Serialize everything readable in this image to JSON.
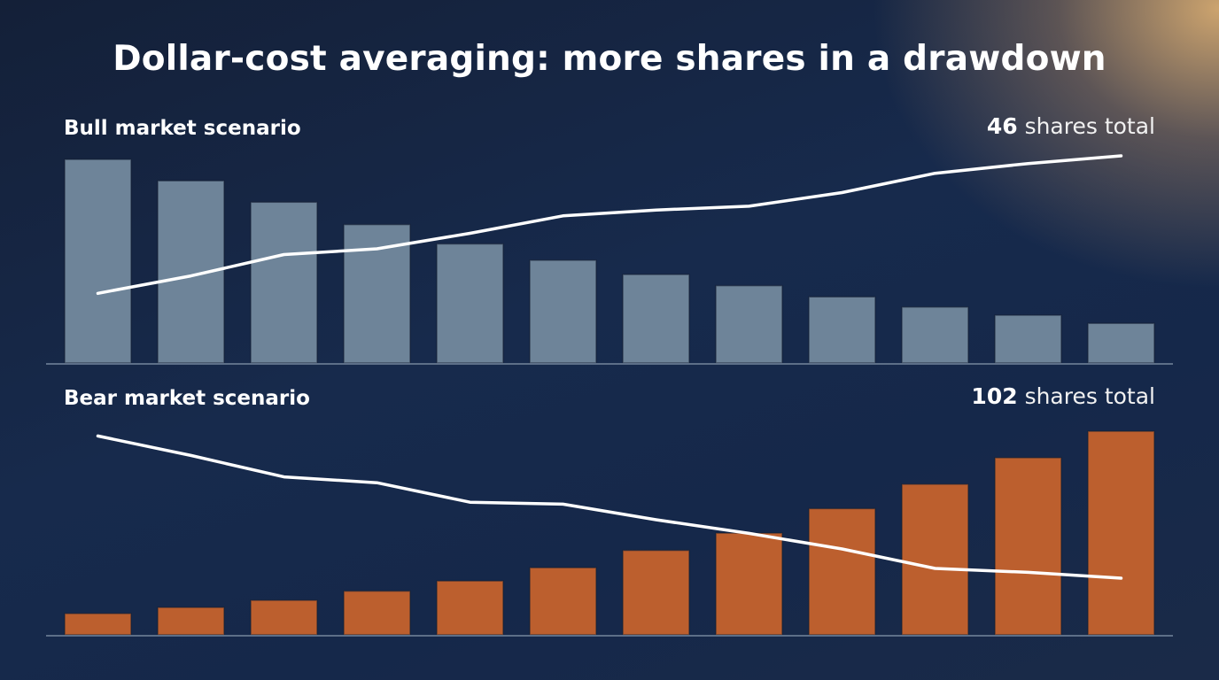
{
  "title": "Dollar-cost averaging: more shares in a drawdown",
  "colors": {
    "bull_bar": "#6e8499",
    "bear_bar": "#bc5f2e",
    "line": "#ffffff",
    "baseline": "#5d6f88"
  },
  "chart_data": [
    {
      "type": "bar",
      "label": "Bull market scenario",
      "total_value": "46",
      "total_suffix": "shares total",
      "bar_values": [
        100,
        89.5,
        79,
        68,
        58.5,
        50.5,
        43.5,
        38,
        32.5,
        27.5,
        23.5,
        19.5
      ],
      "line_values": [
        31,
        40,
        51,
        54,
        62,
        71,
        74,
        76,
        83,
        93,
        98,
        102
      ],
      "ylim": [
        0,
        100
      ]
    },
    {
      "type": "bar",
      "label": "Bear market scenario",
      "total_value": "102",
      "total_suffix": "shares total",
      "bar_values": [
        10.5,
        13.5,
        17,
        21.5,
        26.5,
        33,
        41.5,
        50,
        62,
        74,
        87,
        100
      ],
      "line_values": [
        100,
        90,
        79,
        76,
        66,
        65,
        57,
        50,
        42,
        32,
        30,
        27
      ],
      "ylim": [
        0,
        100
      ]
    }
  ]
}
